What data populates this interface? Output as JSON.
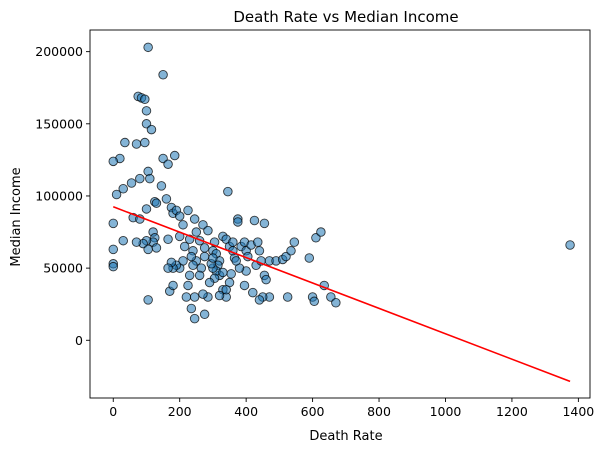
{
  "chart_data": {
    "type": "scatter",
    "title": "Death Rate vs Median Income",
    "xlabel": "Death Rate",
    "ylabel": "Median Income",
    "xlim": [
      -70,
      1435
    ],
    "ylim": [
      -40000,
      215000
    ],
    "x_ticks": [
      0,
      200,
      400,
      600,
      800,
      1000,
      1200,
      1400
    ],
    "y_ticks": [
      0,
      50000,
      100000,
      150000,
      200000
    ],
    "grid": false,
    "point_color": "#1f77b4",
    "point_edge_color": "#000000",
    "point_alpha": 0.55,
    "trend_color": "#ff0000",
    "trendline": {
      "x": [
        0,
        1375
      ],
      "y": [
        92500,
        -28500
      ]
    },
    "points": [
      [
        105,
        203000
      ],
      [
        150,
        184000
      ],
      [
        75,
        169000
      ],
      [
        85,
        168000
      ],
      [
        95,
        167000
      ],
      [
        100,
        159000
      ],
      [
        100,
        150000
      ],
      [
        115,
        146000
      ],
      [
        35,
        137000
      ],
      [
        70,
        136000
      ],
      [
        95,
        137000
      ],
      [
        20,
        126000
      ],
      [
        0,
        124000
      ],
      [
        150,
        126000
      ],
      [
        165,
        122000
      ],
      [
        185,
        128000
      ],
      [
        55,
        109000
      ],
      [
        80,
        112000
      ],
      [
        105,
        117000
      ],
      [
        110,
        112000
      ],
      [
        30,
        105000
      ],
      [
        10,
        101000
      ],
      [
        145,
        107000
      ],
      [
        160,
        98000
      ],
      [
        175,
        92000
      ],
      [
        180,
        88000
      ],
      [
        190,
        90000
      ],
      [
        200,
        86000
      ],
      [
        225,
        90000
      ],
      [
        210,
        80000
      ],
      [
        245,
        84000
      ],
      [
        270,
        80000
      ],
      [
        345,
        103000
      ],
      [
        125,
        96000
      ],
      [
        130,
        95000
      ],
      [
        100,
        91000
      ],
      [
        60,
        85000
      ],
      [
        80,
        84000
      ],
      [
        0,
        81000
      ],
      [
        120,
        75000
      ],
      [
        125,
        71000
      ],
      [
        120,
        68000
      ],
      [
        100,
        69000
      ],
      [
        90,
        67000
      ],
      [
        70,
        68000
      ],
      [
        30,
        69000
      ],
      [
        0,
        63000
      ],
      [
        0,
        53000
      ],
      [
        0,
        51000
      ],
      [
        105,
        63000
      ],
      [
        130,
        64000
      ],
      [
        165,
        70000
      ],
      [
        200,
        72000
      ],
      [
        215,
        65000
      ],
      [
        230,
        70000
      ],
      [
        240,
        62000
      ],
      [
        250,
        75000
      ],
      [
        260,
        69000
      ],
      [
        275,
        64000
      ],
      [
        285,
        76000
      ],
      [
        300,
        62000
      ],
      [
        305,
        68000
      ],
      [
        310,
        60000
      ],
      [
        320,
        55000
      ],
      [
        330,
        72000
      ],
      [
        340,
        70000
      ],
      [
        350,
        65000
      ],
      [
        360,
        68000
      ],
      [
        365,
        57000
      ],
      [
        375,
        84000
      ],
      [
        375,
        82000
      ],
      [
        385,
        65000
      ],
      [
        395,
        68000
      ],
      [
        400,
        62000
      ],
      [
        405,
        58000
      ],
      [
        415,
        66000
      ],
      [
        425,
        83000
      ],
      [
        435,
        68000
      ],
      [
        440,
        62000
      ],
      [
        455,
        81000
      ],
      [
        430,
        52000
      ],
      [
        445,
        55000
      ],
      [
        455,
        45000
      ],
      [
        460,
        42000
      ],
      [
        470,
        55000
      ],
      [
        490,
        55000
      ],
      [
        510,
        56000
      ],
      [
        520,
        58000
      ],
      [
        535,
        62000
      ],
      [
        545,
        68000
      ],
      [
        590,
        57000
      ],
      [
        600,
        30000
      ],
      [
        610,
        71000
      ],
      [
        625,
        75000
      ],
      [
        635,
        38000
      ],
      [
        655,
        30000
      ],
      [
        670,
        26000
      ],
      [
        605,
        27000
      ],
      [
        525,
        30000
      ],
      [
        470,
        30000
      ],
      [
        450,
        30000
      ],
      [
        440,
        28000
      ],
      [
        420,
        33000
      ],
      [
        395,
        38000
      ],
      [
        400,
        48000
      ],
      [
        380,
        50000
      ],
      [
        370,
        55000
      ],
      [
        355,
        46000
      ],
      [
        350,
        40000
      ],
      [
        340,
        30000
      ],
      [
        330,
        35000
      ],
      [
        320,
        45000
      ],
      [
        315,
        52000
      ],
      [
        310,
        48000
      ],
      [
        305,
        43000
      ],
      [
        300,
        50000
      ],
      [
        295,
        53000
      ],
      [
        290,
        40000
      ],
      [
        285,
        30000
      ],
      [
        275,
        58000
      ],
      [
        265,
        50000
      ],
      [
        260,
        45000
      ],
      [
        250,
        55000
      ],
      [
        245,
        30000
      ],
      [
        240,
        52000
      ],
      [
        235,
        58000
      ],
      [
        230,
        45000
      ],
      [
        225,
        38000
      ],
      [
        220,
        30000
      ],
      [
        210,
        55000
      ],
      [
        200,
        50000
      ],
      [
        190,
        52000
      ],
      [
        180,
        50000
      ],
      [
        175,
        54000
      ],
      [
        165,
        50000
      ],
      [
        170,
        34000
      ],
      [
        180,
        38000
      ],
      [
        235,
        22000
      ],
      [
        245,
        15000
      ],
      [
        275,
        18000
      ],
      [
        270,
        32000
      ],
      [
        320,
        31000
      ],
      [
        340,
        35000
      ],
      [
        105,
        28000
      ],
      [
        330,
        47000
      ],
      [
        300,
        57000
      ],
      [
        360,
        62000
      ],
      [
        1375,
        66000
      ]
    ]
  }
}
